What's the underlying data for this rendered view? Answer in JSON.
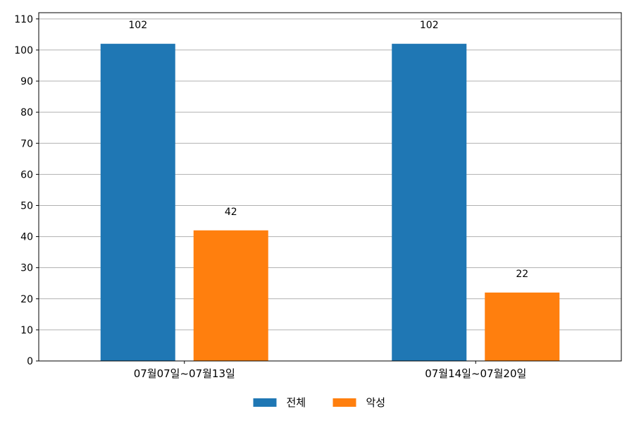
{
  "chart_data": {
    "type": "bar",
    "categories": [
      "07월07일~07월13일",
      "07월14일~07월20일"
    ],
    "series": [
      {
        "name": "전체",
        "values": [
          102,
          102
        ],
        "color": "#1f77b4"
      },
      {
        "name": "악성",
        "values": [
          42,
          22
        ],
        "color": "#ff7f0e"
      }
    ],
    "ylim": [
      0,
      112
    ],
    "yticks": [
      0,
      10,
      20,
      30,
      40,
      50,
      60,
      70,
      80,
      90,
      100,
      110
    ],
    "grid": true,
    "legend_position": "bottom-center",
    "data_labels": true
  }
}
